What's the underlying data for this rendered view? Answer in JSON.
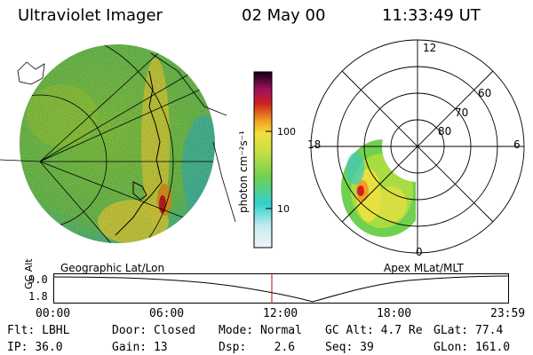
{
  "header": {
    "title": "Ultraviolet Imager",
    "date": "02 May 00",
    "time": "11:33:49 UT"
  },
  "geo_panel": {
    "label": "Geographic Lat/Lon"
  },
  "colorbar": {
    "unit_label": "photon cm⁻²s⁻¹",
    "ticks": [
      "100",
      "10"
    ]
  },
  "polar_panel": {
    "label": "Apex MLat/MLT",
    "mlt_labels": [
      "12",
      "18",
      "6",
      "0"
    ],
    "lat_labels": [
      "60",
      "70",
      "80"
    ]
  },
  "altitude_plot": {
    "ylabel": "GC Alt",
    "y_ticks": [
      "9.0",
      "1.8"
    ],
    "x_ticks": [
      "00:00",
      "06:00",
      "12:00",
      "18:00",
      "23:59"
    ],
    "current_time_marker": "11:33"
  },
  "status": {
    "row1": [
      {
        "key": "Flt:",
        "value": "LBHL"
      },
      {
        "key": "Door:",
        "value": "Closed"
      },
      {
        "key": "Mode:",
        "value": "Normal"
      },
      {
        "key": "GC Alt:",
        "value": "4.7 Re"
      },
      {
        "key": "GLat:",
        "value": "77.4"
      }
    ],
    "row2": [
      {
        "key": "IP:",
        "value": "36.0"
      },
      {
        "key": "Gain:",
        "value": "13"
      },
      {
        "key": "Dsp:",
        "value": "2.6"
      },
      {
        "key": "Seq:",
        "value": "39"
      },
      {
        "key": "GLon:",
        "value": "161.0"
      }
    ]
  },
  "colors": {
    "low": "#e8eef2",
    "cyan": "#30d0d0",
    "green": "#70d050",
    "yellow": "#e8e040",
    "orange": "#f0a020",
    "red": "#d02020",
    "dark": "#200020",
    "marker": "#c00000"
  }
}
